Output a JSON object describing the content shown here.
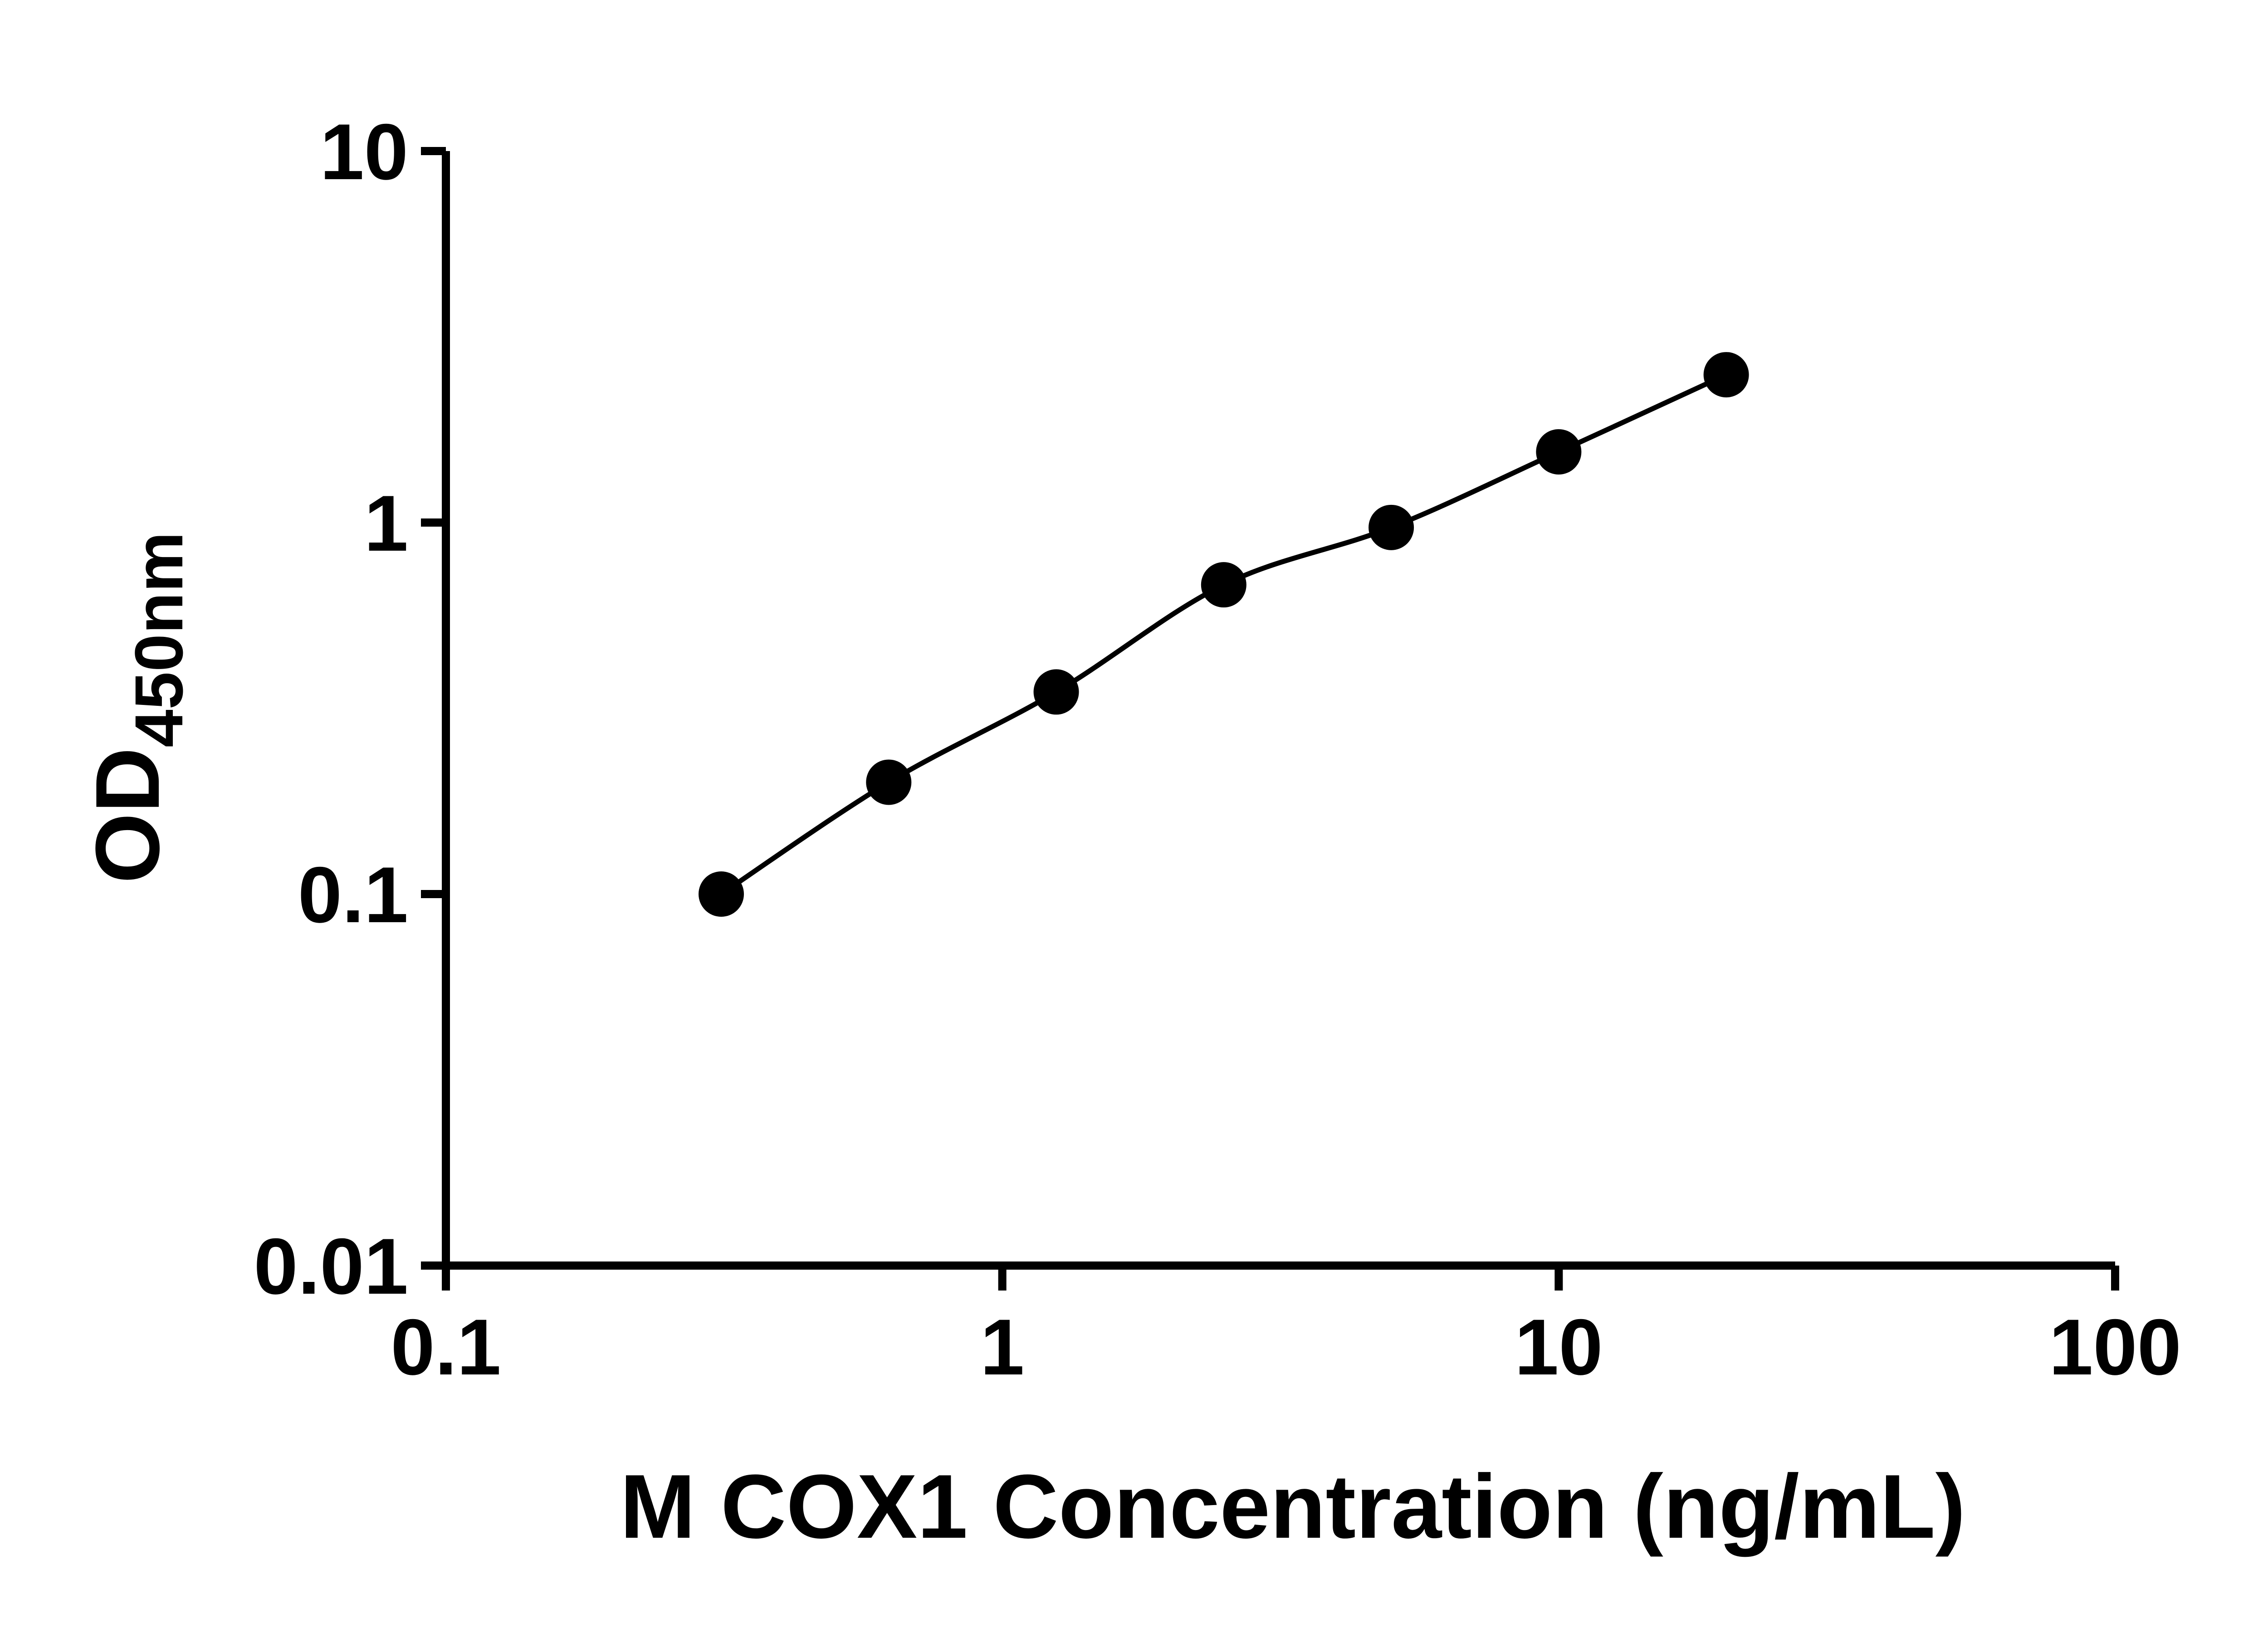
{
  "chart_data": {
    "type": "scatter",
    "title": "",
    "xlabel": "M COX1 Concentration (ng/mL)",
    "ylabel_main": "OD",
    "ylabel_sub": "450nm",
    "xscale": "log",
    "yscale": "log",
    "xlim": [
      0.1,
      100
    ],
    "ylim": [
      0.01,
      10
    ],
    "x": [
      0.3125,
      0.625,
      1.25,
      2.5,
      5,
      10,
      20
    ],
    "y": [
      0.1,
      0.2,
      0.35,
      0.68,
      0.97,
      1.55,
      2.5
    ],
    "x_ticks": [
      0.1,
      1,
      10,
      100
    ],
    "x_tick_labels": [
      "0.1",
      "1",
      "10",
      "100"
    ],
    "y_ticks": [
      0.01,
      0.1,
      1,
      10
    ],
    "y_tick_labels": [
      "0.01",
      "0.1",
      "1",
      "10"
    ],
    "grid": false,
    "legend": "none",
    "marker": "filled-circle",
    "marker_color": "#000000",
    "line_color": "#000000",
    "axis_color": "#000000",
    "background_color": "#ffffff",
    "fit_line_through_points": true
  }
}
